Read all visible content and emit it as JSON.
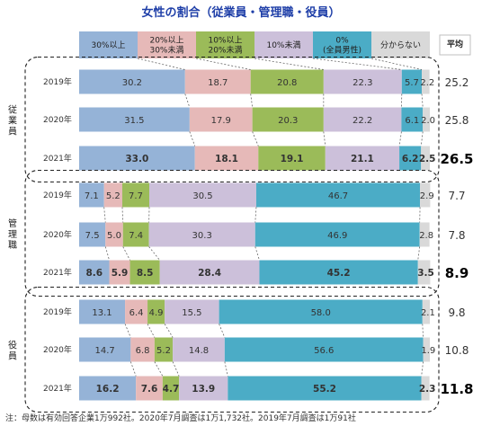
{
  "chart_data": {
    "type": "bar",
    "orientation": "horizontal-stacked-100",
    "title": "女性の割合（従業員・管理職・役員）",
    "legend": [
      {
        "name": "30%以上",
        "lines": [
          "30%以上"
        ],
        "color": "#95b3d7"
      },
      {
        "name": "20%以上30%未満",
        "lines": [
          "20%以上",
          "30%未満"
        ],
        "color": "#e6b9b8"
      },
      {
        "name": "10%以上20%未満",
        "lines": [
          "10%以上",
          "20%未満"
        ],
        "color": "#9bbb59"
      },
      {
        "name": "10%未満",
        "lines": [
          "10%未満"
        ],
        "color": "#ccc0da"
      },
      {
        "name": "0%（全員男性）",
        "lines": [
          "0%",
          "(全員男性)"
        ],
        "color": "#4bacc6"
      },
      {
        "name": "分からない",
        "lines": [
          "分からない"
        ],
        "color": "#d9d9d9"
      }
    ],
    "average_header": "平均",
    "groups": [
      {
        "label": "従業員",
        "label_lines": [
          "従",
          "業",
          "員"
        ],
        "rows": [
          {
            "year": "2019年",
            "values": [
              30.2,
              18.7,
              20.8,
              22.3,
              5.7,
              2.2
            ],
            "average": 25.2,
            "bold": false
          },
          {
            "year": "2020年",
            "values": [
              31.5,
              17.9,
              20.3,
              22.2,
              6.1,
              2.0
            ],
            "average": 25.8,
            "bold": false
          },
          {
            "year": "2021年",
            "values": [
              33.0,
              18.1,
              19.1,
              21.1,
              6.2,
              2.5
            ],
            "average": 26.5,
            "bold": true
          }
        ]
      },
      {
        "label": "管理職",
        "label_lines": [
          "管",
          "理",
          "職"
        ],
        "rows": [
          {
            "year": "2019年",
            "values": [
              7.1,
              5.2,
              7.7,
              30.5,
              46.7,
              2.9
            ],
            "average": 7.7,
            "bold": false
          },
          {
            "year": "2020年",
            "values": [
              7.5,
              5.0,
              7.4,
              30.3,
              46.9,
              2.8
            ],
            "average": 7.8,
            "bold": false
          },
          {
            "year": "2021年",
            "values": [
              8.6,
              5.9,
              8.5,
              28.4,
              45.2,
              3.5
            ],
            "average": 8.9,
            "bold": true
          }
        ]
      },
      {
        "label": "役員",
        "label_lines": [
          "役",
          "員"
        ],
        "rows": [
          {
            "year": "2019年",
            "values": [
              13.1,
              6.4,
              4.9,
              15.5,
              58.0,
              2.1
            ],
            "average": 9.8,
            "bold": false
          },
          {
            "year": "2020年",
            "values": [
              14.7,
              6.8,
              5.2,
              14.8,
              56.6,
              1.9
            ],
            "average": 10.8,
            "bold": false
          },
          {
            "year": "2021年",
            "values": [
              16.2,
              7.6,
              4.7,
              13.9,
              55.2,
              2.3
            ],
            "average": 11.8,
            "bold": true
          }
        ]
      }
    ],
    "xlim": [
      0,
      100
    ]
  },
  "note": "注：母数は有効回答企業1万992社。2020年7月調査は1万1,732社。2019年7月調査は1万91社"
}
